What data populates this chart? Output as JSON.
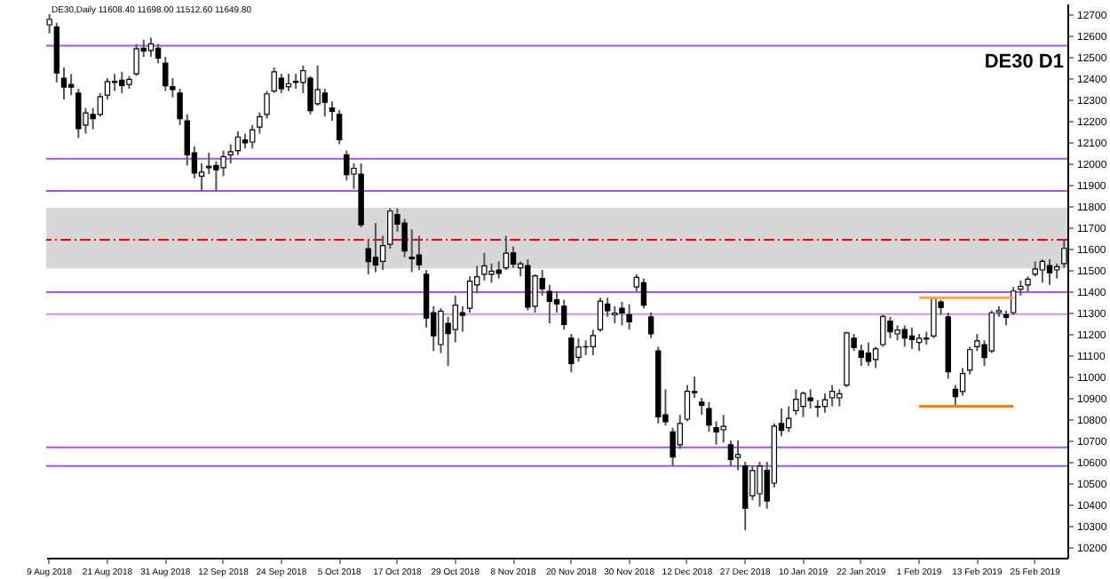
{
  "chart_data": {
    "type": "candlestick",
    "title": "DE30 D1",
    "annotations": [
      "DE30,Daily  11608.40 11698.00 11512.60 11649.80"
    ],
    "categories": [
      "9 Aug 2018",
      null,
      null,
      null,
      null,
      null,
      null,
      null,
      "21 Aug 2018",
      null,
      null,
      null,
      null,
      null,
      null,
      null,
      "31 Aug 2018",
      null,
      null,
      null,
      null,
      null,
      null,
      null,
      "12 Sep 2018",
      null,
      null,
      null,
      null,
      null,
      null,
      null,
      "24 Sep 2018",
      null,
      null,
      null,
      null,
      null,
      null,
      null,
      "5 Oct 2018",
      null,
      null,
      null,
      null,
      null,
      null,
      null,
      "17 Oct 2018",
      null,
      null,
      null,
      null,
      null,
      null,
      null,
      "29 Oct 2018",
      null,
      null,
      null,
      null,
      null,
      null,
      null,
      "8 Nov 2018",
      null,
      null,
      null,
      null,
      null,
      null,
      null,
      "20 Nov 2018",
      null,
      null,
      null,
      null,
      null,
      null,
      null,
      "30 Nov 2018",
      null,
      null,
      null,
      null,
      null,
      null,
      null,
      "12 Dec 2018",
      null,
      null,
      null,
      null,
      null,
      null,
      null,
      "27 Dec 2018",
      null,
      null,
      null,
      null,
      null,
      null,
      null,
      "10 Jan 2019",
      null,
      null,
      null,
      null,
      null,
      null,
      null,
      "22 Jan 2019",
      null,
      null,
      null,
      null,
      null,
      null,
      null,
      "1 Feb 2019",
      null,
      null,
      null,
      null,
      null,
      null,
      null,
      "13 Feb 2019",
      null,
      null,
      null,
      null,
      null,
      null,
      null,
      "25 Feb 2019",
      null,
      null,
      null,
      null
    ],
    "ohlc": [
      [
        12650,
        12700,
        12610,
        12676
      ],
      [
        12640,
        12660,
        12380,
        12424
      ],
      [
        12400,
        12450,
        12300,
        12358
      ],
      [
        12370,
        12420,
        12320,
        12358
      ],
      [
        12330,
        12350,
        12120,
        12163
      ],
      [
        12180,
        12260,
        12140,
        12237
      ],
      [
        12230,
        12260,
        12160,
        12210
      ],
      [
        12230,
        12330,
        12220,
        12313
      ],
      [
        12320,
        12400,
        12300,
        12384
      ],
      [
        12380,
        12420,
        12340,
        12385
      ],
      [
        12390,
        12430,
        12330,
        12365
      ],
      [
        12370,
        12410,
        12350,
        12394
      ],
      [
        12420,
        12560,
        12410,
        12538
      ],
      [
        12540,
        12580,
        12500,
        12527
      ],
      [
        12530,
        12590,
        12500,
        12561
      ],
      [
        12540,
        12560,
        12470,
        12494
      ],
      [
        12470,
        12500,
        12340,
        12364
      ],
      [
        12360,
        12400,
        12310,
        12346
      ],
      [
        12330,
        12350,
        12180,
        12210
      ],
      [
        12200,
        12230,
        11990,
        12040
      ],
      [
        12050,
        12080,
        11930,
        11955
      ],
      [
        11940,
        12000,
        11870,
        11959
      ],
      [
        11980,
        12050,
        11950,
        11986
      ],
      [
        11990,
        12010,
        11870,
        11970
      ],
      [
        11980,
        12060,
        11940,
        12032
      ],
      [
        12040,
        12090,
        12000,
        12055
      ],
      [
        12060,
        12150,
        12040,
        12124
      ],
      [
        12110,
        12140,
        12070,
        12096
      ],
      [
        12100,
        12180,
        12070,
        12158
      ],
      [
        12170,
        12240,
        12140,
        12219
      ],
      [
        12230,
        12340,
        12210,
        12326
      ],
      [
        12340,
        12450,
        12330,
        12430
      ],
      [
        12400,
        12420,
        12330,
        12350
      ],
      [
        12360,
        12420,
        12340,
        12374
      ],
      [
        12380,
        12420,
        12350,
        12385
      ],
      [
        12380,
        12460,
        12330,
        12435
      ],
      [
        12400,
        12410,
        12230,
        12247
      ],
      [
        12280,
        12460,
        12270,
        12346
      ],
      [
        12330,
        12350,
        12220,
        12287
      ],
      [
        12260,
        12290,
        12200,
        12244
      ],
      [
        12230,
        12250,
        12090,
        12111
      ],
      [
        12040,
        12060,
        11920,
        11947
      ],
      [
        11950,
        12000,
        11880,
        11977
      ],
      [
        11950,
        12000,
        11700,
        11712
      ],
      [
        11600,
        11640,
        11480,
        11539
      ],
      [
        11560,
        11720,
        11490,
        11523
      ],
      [
        11540,
        11660,
        11500,
        11614
      ],
      [
        11620,
        11790,
        11600,
        11776
      ],
      [
        11760,
        11790,
        11680,
        11715
      ],
      [
        11720,
        11740,
        11560,
        11589
      ],
      [
        11560,
        11690,
        11490,
        11553
      ],
      [
        11570,
        11660,
        11500,
        11524
      ],
      [
        11480,
        11500,
        11230,
        11274
      ],
      [
        11300,
        11330,
        11120,
        11191
      ],
      [
        11150,
        11320,
        11110,
        11307
      ],
      [
        11250,
        11280,
        11050,
        11201
      ],
      [
        11220,
        11380,
        11160,
        11335
      ],
      [
        11300,
        11330,
        11210,
        11287
      ],
      [
        11320,
        11470,
        11300,
        11447
      ],
      [
        11430,
        11520,
        11390,
        11468
      ],
      [
        11480,
        11580,
        11450,
        11519
      ],
      [
        11480,
        11530,
        11440,
        11494
      ],
      [
        11500,
        11540,
        11460,
        11484
      ],
      [
        11510,
        11660,
        11500,
        11579
      ],
      [
        11580,
        11610,
        11510,
        11527
      ],
      [
        11510,
        11540,
        11470,
        11529
      ],
      [
        11520,
        11550,
        11310,
        11325
      ],
      [
        11330,
        11480,
        11300,
        11472
      ],
      [
        11460,
        11500,
        11380,
        11412
      ],
      [
        11400,
        11430,
        11250,
        11353
      ],
      [
        11360,
        11400,
        11300,
        11341
      ],
      [
        11330,
        11360,
        11220,
        11244
      ],
      [
        11180,
        11200,
        11020,
        11061
      ],
      [
        11090,
        11180,
        11070,
        11138
      ],
      [
        11140,
        11170,
        11100,
        11139
      ],
      [
        11140,
        11220,
        11100,
        11192
      ],
      [
        11220,
        11370,
        11210,
        11354
      ],
      [
        11340,
        11370,
        11280,
        11309
      ],
      [
        11290,
        11330,
        11250,
        11298
      ],
      [
        11320,
        11350,
        11240,
        11298
      ],
      [
        11290,
        11340,
        11220,
        11257
      ],
      [
        11420,
        11480,
        11400,
        11465
      ],
      [
        11440,
        11460,
        11320,
        11335
      ],
      [
        11280,
        11300,
        11180,
        11200
      ],
      [
        11120,
        11140,
        10780,
        10811
      ],
      [
        10820,
        10940,
        10770,
        10788
      ],
      [
        10740,
        10760,
        10580,
        10622
      ],
      [
        10680,
        10820,
        10660,
        10780
      ],
      [
        10800,
        10960,
        10790,
        10931
      ],
      [
        10930,
        11000,
        10900,
        10924
      ],
      [
        10880,
        10900,
        10820,
        10865
      ],
      [
        10850,
        10880,
        10740,
        10772
      ],
      [
        10760,
        10790,
        10680,
        10740
      ],
      [
        10750,
        10820,
        10690,
        10766
      ],
      [
        10680,
        10700,
        10580,
        10611
      ],
      [
        10620,
        10700,
        10560,
        10634
      ],
      [
        10580,
        10600,
        10279,
        10382
      ],
      [
        10440,
        10580,
        10420,
        10559
      ],
      [
        10450,
        10600,
        10390,
        10580
      ],
      [
        10560,
        10600,
        10380,
        10416
      ],
      [
        10500,
        10780,
        10480,
        10767
      ],
      [
        10780,
        10850,
        10720,
        10747
      ],
      [
        10760,
        10860,
        10740,
        10804
      ],
      [
        10840,
        10940,
        10820,
        10893
      ],
      [
        10860,
        10930,
        10810,
        10921
      ],
      [
        10900,
        10940,
        10850,
        10887
      ],
      [
        10860,
        10890,
        10810,
        10856
      ],
      [
        10860,
        10920,
        10830,
        10891
      ],
      [
        10900,
        10960,
        10860,
        10931
      ],
      [
        10900,
        10940,
        10860,
        10919
      ],
      [
        10960,
        11210,
        10950,
        11205
      ],
      [
        11180,
        11200,
        11120,
        11136
      ],
      [
        11120,
        11150,
        11050,
        11090
      ],
      [
        11110,
        11160,
        11050,
        11071
      ],
      [
        11080,
        11140,
        11040,
        11130
      ],
      [
        11150,
        11290,
        11140,
        11282
      ],
      [
        11260,
        11280,
        11180,
        11210
      ],
      [
        11200,
        11240,
        11170,
        11218
      ],
      [
        11220,
        11240,
        11140,
        11181
      ],
      [
        11190,
        11230,
        11130,
        11173
      ],
      [
        11160,
        11200,
        11120,
        11180
      ],
      [
        11180,
        11210,
        11150,
        11176
      ],
      [
        11190,
        11370,
        11180,
        11367
      ],
      [
        11350,
        11360,
        11290,
        11324
      ],
      [
        11280,
        11300,
        10990,
        11022
      ],
      [
        10940,
        10960,
        10860,
        10906
      ],
      [
        10930,
        11040,
        10910,
        11014
      ],
      [
        11030,
        11140,
        11010,
        11126
      ],
      [
        11140,
        11200,
        11120,
        11167
      ],
      [
        11150,
        11170,
        11050,
        11089
      ],
      [
        11120,
        11310,
        11110,
        11299
      ],
      [
        11300,
        11330,
        11280,
        11309
      ],
      [
        11290,
        11310,
        11240,
        11278
      ],
      [
        11300,
        11420,
        11290,
        11401
      ],
      [
        11410,
        11450,
        11380,
        11423
      ],
      [
        11430,
        11470,
        11400,
        11457
      ],
      [
        11480,
        11540,
        11470,
        11505
      ],
      [
        11500,
        11550,
        11440,
        11540
      ],
      [
        11520,
        11550,
        11430,
        11487
      ],
      [
        11500,
        11530,
        11460,
        11515
      ],
      [
        11530,
        11642,
        11510,
        11601
      ]
    ],
    "series": [
      {
        "type": "line",
        "color": "#ffa040",
        "values": [
          null,
          null,
          null,
          null,
          null,
          null,
          null,
          null,
          null,
          null,
          null,
          null,
          null,
          null,
          null,
          null,
          null,
          null,
          null,
          null,
          null,
          null,
          null,
          null,
          null,
          null,
          null,
          null,
          null,
          null,
          null,
          null,
          null,
          null,
          null,
          null,
          null,
          null,
          null,
          null,
          null,
          null,
          null,
          null,
          null,
          null,
          null,
          null,
          null,
          null,
          null,
          null,
          null,
          null,
          null,
          null,
          null,
          null,
          null,
          null,
          null,
          null,
          null,
          null,
          null,
          null,
          null,
          null,
          null,
          null,
          null,
          null,
          null,
          null,
          null,
          null,
          null,
          null,
          null,
          null,
          null,
          null,
          null,
          null,
          null,
          null,
          null,
          null,
          null,
          null,
          null,
          null,
          null,
          null,
          null,
          null,
          null,
          null,
          null,
          null,
          null,
          null,
          null,
          null,
          null,
          null,
          null,
          null,
          null,
          null,
          null,
          null,
          null,
          null,
          null,
          null,
          null,
          null,
          null,
          null,
          11370,
          11370,
          11370,
          11370,
          11370,
          11370,
          11370,
          11370,
          11370,
          11370,
          11370,
          11370,
          11370,
          11370,
          null,
          null,
          null,
          null,
          null,
          null,
          null
        ]
      },
      {
        "type": "line",
        "color": "#ff8000",
        "values": [
          null,
          null,
          null,
          null,
          null,
          null,
          null,
          null,
          null,
          null,
          null,
          null,
          null,
          null,
          null,
          null,
          null,
          null,
          null,
          null,
          null,
          null,
          null,
          null,
          null,
          null,
          null,
          null,
          null,
          null,
          null,
          null,
          null,
          null,
          null,
          null,
          null,
          null,
          null,
          null,
          null,
          null,
          null,
          null,
          null,
          null,
          null,
          null,
          null,
          null,
          null,
          null,
          null,
          null,
          null,
          null,
          null,
          null,
          null,
          null,
          null,
          null,
          null,
          null,
          null,
          null,
          null,
          null,
          null,
          null,
          null,
          null,
          null,
          null,
          null,
          null,
          null,
          null,
          null,
          null,
          null,
          null,
          null,
          null,
          null,
          null,
          null,
          null,
          null,
          null,
          null,
          null,
          null,
          null,
          null,
          null,
          null,
          null,
          null,
          null,
          null,
          null,
          null,
          null,
          null,
          null,
          null,
          null,
          null,
          null,
          null,
          null,
          null,
          null,
          null,
          null,
          null,
          null,
          null,
          null,
          10860,
          10860,
          10860,
          10860,
          10860,
          10860,
          10860,
          10860,
          10860,
          10860,
          10860,
          10860,
          10860,
          10860,
          null,
          null,
          null,
          null,
          null,
          null,
          null
        ]
      }
    ],
    "ref_lines": [
      {
        "axis": "y",
        "value": 12552,
        "color": "#b050e0"
      },
      {
        "axis": "y",
        "value": 12022,
        "color": "#b050e0"
      },
      {
        "axis": "y",
        "value": 11871,
        "color": "#b050e0"
      },
      {
        "axis": "y",
        "value": 11396,
        "color": "#b050e0"
      },
      {
        "axis": "y",
        "value": 11293,
        "color": "#d090f0"
      },
      {
        "axis": "y",
        "value": 10668,
        "color": "#b050e0"
      },
      {
        "axis": "y",
        "value": 10580,
        "color": "#b050e0"
      },
      {
        "axis": "y",
        "value": 11642,
        "color": "#ff0000",
        "line_style": "dashed"
      }
    ],
    "bands": [
      {
        "axis": "y",
        "from": 11507,
        "to": 11792,
        "color": "#d3d3d3"
      }
    ],
    "ylim": [
      10150,
      12750
    ],
    "yticks": [
      10200,
      10300,
      10400,
      10500,
      10600,
      10700,
      10800,
      10900,
      11000,
      11100,
      11200,
      11300,
      11400,
      11500,
      11600,
      11700,
      11800,
      11900,
      12000,
      12100,
      12200,
      12300,
      12400,
      12500,
      12600,
      12700
    ],
    "grid": false
  }
}
